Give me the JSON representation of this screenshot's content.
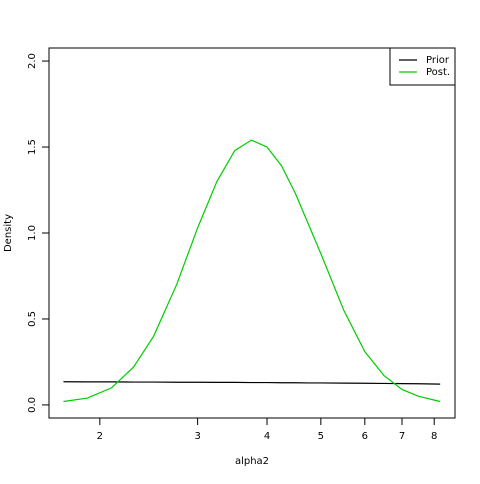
{
  "chart_data": {
    "type": "line",
    "x_label": "alpha2",
    "y_label": "Density",
    "x_log": true,
    "xlim": [
      1.62,
      8.72
    ],
    "ylim": [
      -0.076,
      2.076
    ],
    "xticks": [
      2,
      3,
      4,
      5,
      6,
      7,
      8
    ],
    "yticks": [
      {
        "value": 0,
        "label": "0.0"
      },
      {
        "value": 0.5,
        "label": "0.5"
      },
      {
        "value": 1,
        "label": "1.0"
      },
      {
        "value": 1.5,
        "label": "1.5"
      },
      {
        "value": 2,
        "label": "2.0"
      }
    ],
    "legend_position": "top-right",
    "x": [
      1.72,
      1.9,
      2.1,
      2.3,
      2.5,
      2.75,
      3.0,
      3.25,
      3.5,
      3.75,
      4.0,
      4.25,
      4.5,
      4.75,
      5.0,
      5.5,
      6.0,
      6.5,
      7.0,
      7.5,
      8.2
    ],
    "series": [
      {
        "name": "Prior",
        "color": "#000000",
        "values": [
          0.135,
          0.134,
          0.134,
          0.133,
          0.133,
          0.132,
          0.132,
          0.131,
          0.131,
          0.13,
          0.13,
          0.129,
          0.129,
          0.128,
          0.128,
          0.127,
          0.126,
          0.125,
          0.124,
          0.123,
          0.121
        ]
      },
      {
        "name": "Post.",
        "color": "#00cd00",
        "values": [
          0.02,
          0.04,
          0.1,
          0.22,
          0.4,
          0.7,
          1.03,
          1.3,
          1.48,
          1.54,
          1.5,
          1.39,
          1.23,
          1.05,
          0.88,
          0.55,
          0.31,
          0.17,
          0.09,
          0.05,
          0.02
        ]
      }
    ]
  }
}
